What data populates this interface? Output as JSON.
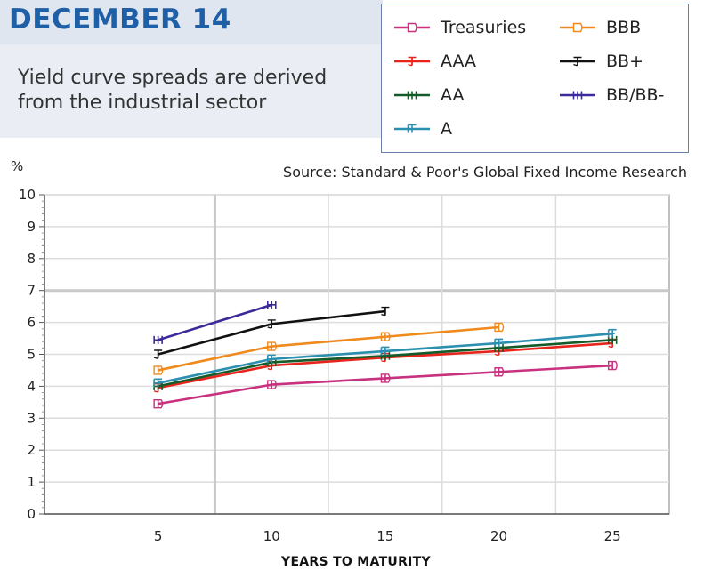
{
  "header": {
    "date": "DECEMBER 14",
    "subtitle": "Yield curve spreads are derived from the industrial sector",
    "source": "Source: Standard & Poor's Global Fixed Income Research"
  },
  "chart_data": {
    "type": "line",
    "y_unit_label": "%",
    "xlabel": "YEARS TO MATURITY",
    "ylabel": "%",
    "x": [
      5,
      10,
      15,
      20,
      25
    ],
    "xlim": [
      0,
      27.5
    ],
    "ylim": [
      0,
      10
    ],
    "y_ticks": [
      0,
      1,
      2,
      3,
      4,
      5,
      6,
      7,
      8,
      9,
      10
    ],
    "grid": true,
    "legend_position": "top-right",
    "series": [
      {
        "name": "Treasuries",
        "color": "#c8317f",
        "marker": "D",
        "points": [
          [
            5,
            3.45
          ],
          [
            10,
            4.05
          ],
          [
            15,
            4.25
          ],
          [
            20,
            4.45
          ],
          [
            25,
            4.65
          ]
        ]
      },
      {
        "name": "AAA",
        "color": "#e8251d",
        "marker": "J",
        "points": [
          [
            5,
            3.95
          ],
          [
            10,
            4.65
          ],
          [
            15,
            4.9
          ],
          [
            20,
            5.1
          ],
          [
            25,
            5.35
          ]
        ]
      },
      {
        "name": "AA",
        "color": "#135c2a",
        "marker": "H",
        "points": [
          [
            5,
            4.0
          ],
          [
            10,
            4.75
          ],
          [
            15,
            4.95
          ],
          [
            20,
            5.2
          ],
          [
            25,
            5.45
          ]
        ]
      },
      {
        "name": "A",
        "color": "#2b8fb0",
        "marker": "F",
        "points": [
          [
            5,
            4.1
          ],
          [
            10,
            4.85
          ],
          [
            15,
            5.1
          ],
          [
            20,
            5.35
          ],
          [
            25,
            5.65
          ]
        ]
      },
      {
        "name": "BBB",
        "color": "#f08a1d",
        "marker": "D",
        "points": [
          [
            5,
            4.5
          ],
          [
            10,
            5.25
          ],
          [
            15,
            5.55
          ],
          [
            20,
            5.85
          ]
        ]
      },
      {
        "name": "BB+",
        "color": "#111111",
        "marker": "J",
        "points": [
          [
            5,
            5.0
          ],
          [
            10,
            5.95
          ],
          [
            15,
            6.35
          ]
        ]
      },
      {
        "name": "BB/BB-",
        "color": "#3b2b9a",
        "marker": "H",
        "points": [
          [
            5,
            5.45
          ],
          [
            10,
            6.55
          ]
        ]
      }
    ]
  }
}
